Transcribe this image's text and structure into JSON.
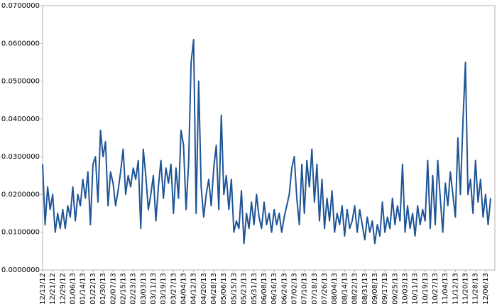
{
  "chart_data": {
    "type": "line",
    "categories": [
      "12/13/12",
      null,
      null,
      null,
      "12/21/12",
      null,
      null,
      null,
      "12/29/12",
      null,
      null,
      null,
      "01/06/13",
      null,
      null,
      null,
      "01/14/13",
      null,
      null,
      null,
      "01/22/13",
      null,
      null,
      null,
      "01/30/13",
      null,
      null,
      null,
      "02/07/13",
      null,
      null,
      null,
      "02/15/13",
      null,
      null,
      null,
      "02/23/13",
      null,
      null,
      null,
      "03/03/13",
      null,
      null,
      null,
      "03/11/13",
      null,
      null,
      null,
      "03/19/13",
      null,
      null,
      null,
      "03/27/13",
      null,
      null,
      null,
      "04/04/13",
      null,
      null,
      null,
      "04/12/13",
      null,
      null,
      null,
      "04/20/13",
      null,
      null,
      null,
      "04/28/13",
      null,
      null,
      null,
      "05/06/13",
      null,
      null,
      null,
      "05/15/13",
      null,
      null,
      null,
      "05/23/13",
      null,
      null,
      null,
      "05/31/13",
      null,
      null,
      null,
      "06/08/13",
      null,
      null,
      null,
      "06/16/13",
      null,
      null,
      null,
      "06/24/13",
      null,
      null,
      null,
      "07/02/13",
      null,
      null,
      null,
      "07/10/13",
      null,
      null,
      null,
      "07/18/13",
      null,
      null,
      null,
      "07/26/13",
      null,
      null,
      null,
      "08/04/13",
      null,
      null,
      null,
      "08/14/13",
      null,
      null,
      null,
      "08/22/13",
      null,
      null,
      null,
      "08/31/13",
      null,
      null,
      null,
      "09/08/13",
      null,
      null,
      null,
      "09/17/13",
      null,
      null,
      null,
      "09/25/13",
      null,
      null,
      null,
      "10/03/13",
      null,
      null,
      null,
      "10/11/13",
      null,
      null,
      null,
      "10/19/13",
      null,
      null,
      null,
      "10/27/13",
      null,
      null,
      null,
      "11/04/13",
      null,
      null,
      null,
      "11/12/13",
      null,
      null,
      null,
      "11/20/13",
      null,
      null,
      null,
      "11/28/13",
      null,
      null,
      null,
      "12/06/13",
      null,
      null
    ],
    "series": [
      {
        "color": "#1f5596",
        "values": [
          0.028,
          0.012,
          0.022,
          0.016,
          0.02,
          0.01,
          0.015,
          0.011,
          0.016,
          0.011,
          0.017,
          0.014,
          0.022,
          0.013,
          0.02,
          0.017,
          0.024,
          0.019,
          0.026,
          0.012,
          0.028,
          0.03,
          0.018,
          0.037,
          0.03,
          0.034,
          0.017,
          0.026,
          0.023,
          0.017,
          0.021,
          0.026,
          0.032,
          0.02,
          0.025,
          0.022,
          0.027,
          0.024,
          0.029,
          0.011,
          0.032,
          0.025,
          0.016,
          0.02,
          0.025,
          0.013,
          0.022,
          0.029,
          0.019,
          0.027,
          0.023,
          0.028,
          0.015,
          0.027,
          0.019,
          0.037,
          0.033,
          0.016,
          0.028,
          0.055,
          0.061,
          0.015,
          0.05,
          0.022,
          0.014,
          0.02,
          0.024,
          0.017,
          0.027,
          0.033,
          0.016,
          0.041,
          0.02,
          0.025,
          0.016,
          0.024,
          0.01,
          0.013,
          0.011,
          0.021,
          0.007,
          0.015,
          0.011,
          0.018,
          0.012,
          0.02,
          0.014,
          0.011,
          0.018,
          0.012,
          0.015,
          0.01,
          0.016,
          0.012,
          0.015,
          0.01,
          0.014,
          0.017,
          0.02,
          0.027,
          0.03,
          0.019,
          0.012,
          0.028,
          0.015,
          0.029,
          0.022,
          0.032,
          0.018,
          0.028,
          0.013,
          0.024,
          0.011,
          0.019,
          0.013,
          0.021,
          0.01,
          0.015,
          0.012,
          0.017,
          0.009,
          0.016,
          0.011,
          0.013,
          0.017,
          0.01,
          0.016,
          0.012,
          0.008,
          0.014,
          0.01,
          0.013,
          0.007,
          0.012,
          0.009,
          0.018,
          0.01,
          0.014,
          0.011,
          0.019,
          0.012,
          0.017,
          0.013,
          0.028,
          0.01,
          0.017,
          0.011,
          0.015,
          0.009,
          0.017,
          0.012,
          0.016,
          0.013,
          0.029,
          0.011,
          0.025,
          0.012,
          0.029,
          0.019,
          0.01,
          0.023,
          0.017,
          0.026,
          0.02,
          0.014,
          0.035,
          0.02,
          0.039,
          0.055,
          0.02,
          0.024,
          0.015,
          0.029,
          0.018,
          0.024,
          0.014,
          0.02,
          0.012,
          0.019
        ]
      }
    ],
    "ylim": [
      0,
      0.07
    ],
    "yticks": [
      {
        "value": 0,
        "label": "0.0000000"
      },
      {
        "value": 0.01,
        "label": "0.0100000"
      },
      {
        "value": 0.02,
        "label": "0.0200000"
      },
      {
        "value": 0.03,
        "label": "0.0300000"
      },
      {
        "value": 0.04,
        "label": "0.0400000"
      },
      {
        "value": 0.05,
        "label": "0.0500000"
      },
      {
        "value": 0.06,
        "label": "0.0600000"
      },
      {
        "value": 0.07,
        "label": "0.0700000"
      }
    ]
  }
}
